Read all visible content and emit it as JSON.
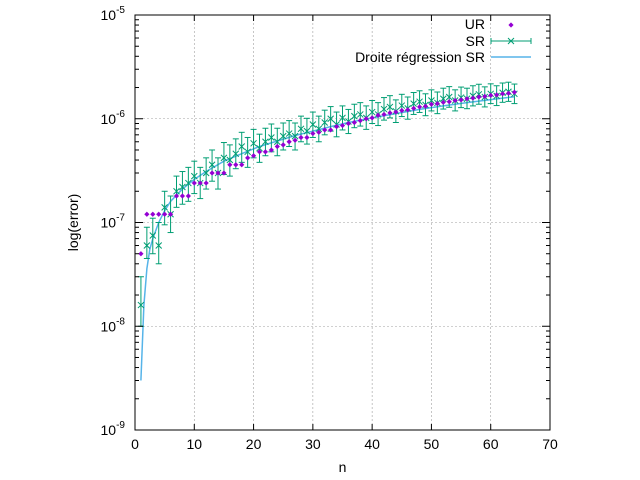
{
  "chart_data": {
    "type": "scatter",
    "xlabel": "n",
    "ylabel": "log(error)",
    "xlim": [
      0,
      70
    ],
    "ylim": [
      1e-09,
      1e-05
    ],
    "yscale": "log",
    "grid": true,
    "legend_position": "top-right",
    "x_ticks": [
      "0",
      "10",
      "20",
      "30",
      "40",
      "50",
      "60",
      "70"
    ],
    "y_ticks": [
      {
        "value": 1e-09,
        "base": "10",
        "exp": "-9"
      },
      {
        "value": 1e-08,
        "base": "10",
        "exp": "-8"
      },
      {
        "value": 1e-07,
        "base": "10",
        "exp": "-7"
      },
      {
        "value": 1e-06,
        "base": "10",
        "exp": "-6"
      },
      {
        "value": 1e-05,
        "base": "10",
        "exp": "-5"
      }
    ],
    "colors": {
      "ur": "#9400d3",
      "sr": "#009e73",
      "regression": "#56b4e9"
    },
    "legend": {
      "ur": "UR",
      "sr": "SR",
      "regression": "Droite régression SR"
    },
    "ur": {
      "x": [
        1,
        2,
        3,
        4,
        5,
        6,
        7,
        8,
        9,
        10,
        11,
        12,
        13,
        14,
        15,
        16,
        17,
        18,
        19,
        20,
        21,
        22,
        23,
        24,
        25,
        26,
        27,
        28,
        29,
        30,
        31,
        32,
        33,
        34,
        35,
        36,
        37,
        38,
        39,
        40,
        41,
        42,
        43,
        44,
        45,
        46,
        47,
        48,
        49,
        50,
        51,
        52,
        53,
        54,
        55,
        56,
        57,
        58,
        59,
        60,
        61,
        62,
        63,
        64
      ],
      "y": [
        5e-08,
        1.2e-07,
        1.2e-07,
        1.2e-07,
        1.2e-07,
        1.2e-07,
        1.8e-07,
        1.8e-07,
        1.8e-07,
        2.4e-07,
        2.4e-07,
        2.4e-07,
        3e-07,
        3e-07,
        3e-07,
        3.6e-07,
        3.6e-07,
        3.6e-07,
        4.2e-07,
        4.4e-07,
        4.8e-07,
        4.8e-07,
        5e-07,
        5.4e-07,
        5.6e-07,
        6e-07,
        6.2e-07,
        6.6e-07,
        6.6e-07,
        7.2e-07,
        7.4e-07,
        7.8e-07,
        7.8e-07,
        8.4e-07,
        8.6e-07,
        9e-07,
        9.2e-07,
        9.6e-07,
        1e-06,
        1.02e-06,
        1.08e-06,
        1.1e-06,
        1.14e-06,
        1.16e-06,
        1.2e-06,
        1.22e-06,
        1.26e-06,
        1.3e-06,
        1.32e-06,
        1.38e-06,
        1.4e-06,
        1.44e-06,
        1.46e-06,
        1.5e-06,
        1.52e-06,
        1.56e-06,
        1.58e-06,
        1.62e-06,
        1.64e-06,
        1.68e-06,
        1.7e-06,
        1.74e-06,
        1.76e-06,
        1.8e-06
      ]
    },
    "sr": {
      "x": [
        1,
        2,
        3,
        4,
        5,
        6,
        7,
        8,
        9,
        10,
        11,
        12,
        13,
        14,
        15,
        16,
        17,
        18,
        19,
        20,
        21,
        22,
        23,
        24,
        25,
        26,
        27,
        28,
        29,
        30,
        31,
        32,
        33,
        34,
        35,
        36,
        37,
        38,
        39,
        40,
        41,
        42,
        43,
        44,
        45,
        46,
        47,
        48,
        49,
        50,
        51,
        52,
        53,
        54,
        55,
        56,
        57,
        58,
        59,
        60,
        61,
        62,
        63,
        64
      ],
      "y": [
        1.6e-08,
        6e-08,
        7.5e-08,
        6e-08,
        1.4e-07,
        1.2e-07,
        2e-07,
        2.2e-07,
        2.4e-07,
        2.8e-07,
        2.4e-07,
        3e-07,
        3.6e-07,
        3e-07,
        4.2e-07,
        4e-07,
        4.6e-07,
        5.4e-07,
        4.8e-07,
        5.8e-07,
        5.2e-07,
        6e-07,
        6.6e-07,
        6e-07,
        6.8e-07,
        7.2e-07,
        6.8e-07,
        8e-07,
        7.6e-07,
        8.8e-07,
        8e-07,
        9.2e-07,
        1e-06,
        8.8e-07,
        1.02e-06,
        9.4e-07,
        1.06e-06,
        1.1e-06,
        1.02e-06,
        1.16e-06,
        1.1e-06,
        1.24e-06,
        1.3e-06,
        1.18e-06,
        1.34e-06,
        1.26e-06,
        1.4e-06,
        1.46e-06,
        1.36e-06,
        1.5e-06,
        1.42e-06,
        1.56e-06,
        1.62e-06,
        1.5e-06,
        1.6e-06,
        1.56e-06,
        1.66e-06,
        1.72e-06,
        1.62e-06,
        1.74e-06,
        1.66e-06,
        1.78e-06,
        1.82e-06,
        1.74e-06
      ],
      "err_low": [
        1e-08,
        4.5e-08,
        5e-08,
        4e-08,
        9.5e-08,
        8e-08,
        1.4e-07,
        1.5e-07,
        1.6e-07,
        1.9e-07,
        1.7e-07,
        2.1e-07,
        2.5e-07,
        2.1e-07,
        2.9e-07,
        2.8e-07,
        3.3e-07,
        3.8e-07,
        3.4e-07,
        4.2e-07,
        3.8e-07,
        4.4e-07,
        4.8e-07,
        4.4e-07,
        5e-07,
        5.4e-07,
        5e-07,
        6e-07,
        5.7e-07,
        6.6e-07,
        6e-07,
        7e-07,
        7.6e-07,
        6.7e-07,
        7.8e-07,
        7.2e-07,
        8.2e-07,
        8.5e-07,
        7.9e-07,
        9e-07,
        8.6e-07,
        9.7e-07,
        1.02e-06,
        9.2e-07,
        1.05e-06,
        9.9e-07,
        1.1e-06,
        1.15e-06,
        1.07e-06,
        1.19e-06,
        1.12e-06,
        1.24e-06,
        1.29e-06,
        1.19e-06,
        1.28e-06,
        1.25e-06,
        1.33e-06,
        1.38e-06,
        1.3e-06,
        1.4e-06,
        1.34e-06,
        1.44e-06,
        1.47e-06,
        1.4e-06
      ],
      "err_high": [
        3e-08,
        9e-08,
        1.1e-07,
        1e-07,
        2e-07,
        1.8e-07,
        2.8e-07,
        3.1e-07,
        3.4e-07,
        3.9e-07,
        3.4e-07,
        4.2e-07,
        5e-07,
        4.2e-07,
        5.9e-07,
        5.6e-07,
        6.4e-07,
        7.4e-07,
        6.6e-07,
        7.9e-07,
        7.1e-07,
        8.1e-07,
        8.9e-07,
        8.1e-07,
        9.1e-07,
        9.6e-07,
        9.1e-07,
        1.06e-06,
        1.01e-06,
        1.16e-06,
        1.06e-06,
        1.21e-06,
        1.31e-06,
        1.16e-06,
        1.33e-06,
        1.23e-06,
        1.38e-06,
        1.43e-06,
        1.33e-06,
        1.5e-06,
        1.43e-06,
        1.6e-06,
        1.67e-06,
        1.52e-06,
        1.72e-06,
        1.62e-06,
        1.79e-06,
        1.86e-06,
        1.74e-06,
        1.9e-06,
        1.81e-06,
        1.97e-06,
        2.04e-06,
        1.9e-06,
        2.02e-06,
        1.97e-06,
        2.08e-06,
        2.15e-06,
        2.03e-06,
        2.17e-06,
        2.08e-06,
        2.21e-06,
        2.25e-06,
        2.16e-06
      ]
    },
    "regression": {
      "x": [
        1,
        1.5,
        2,
        2.5,
        3,
        4,
        5,
        6,
        8,
        10,
        12,
        15,
        18,
        21,
        24,
        27,
        30,
        33,
        36,
        40,
        44,
        48,
        52,
        56,
        60,
        64
      ],
      "y": [
        3e-09,
        1.6e-08,
        3.6e-08,
        5.5e-08,
        7e-08,
        1e-07,
        1.3e-07,
        1.6e-07,
        2.1e-07,
        2.6e-07,
        3.1e-07,
        3.9e-07,
        4.6e-07,
        5.4e-07,
        6.1e-07,
        6.9e-07,
        7.6e-07,
        8.4e-07,
        9.2e-07,
        1.02e-06,
        1.12e-06,
        1.23e-06,
        1.33e-06,
        1.43e-06,
        1.53e-06,
        1.63e-06
      ]
    }
  }
}
